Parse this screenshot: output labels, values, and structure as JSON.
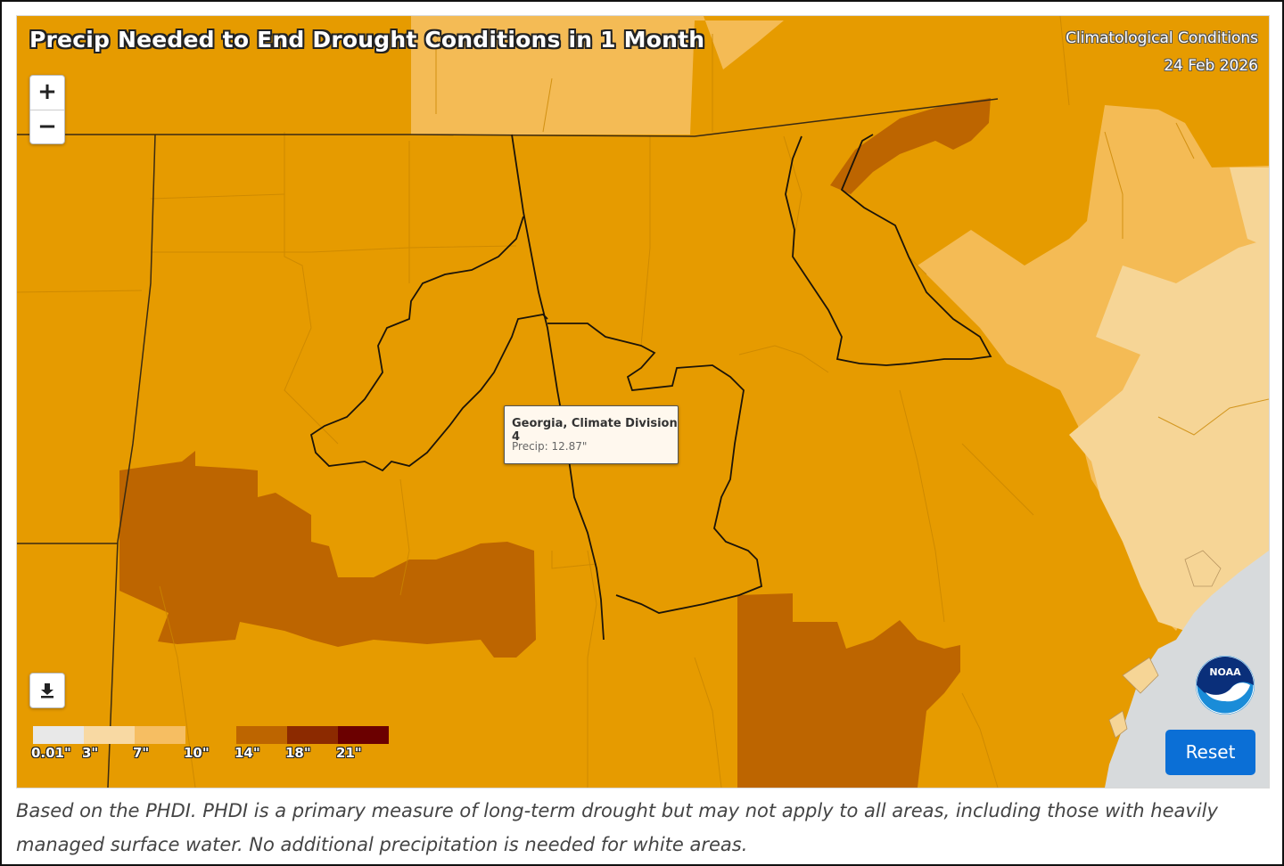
{
  "map": {
    "title": "Precip Needed to End Drought Conditions in 1 Month",
    "source_label": "Climatological Conditions",
    "date": "24 Feb 2026",
    "zoom_in_label": "+",
    "zoom_out_label": "−",
    "colors": {
      "base": "#e69b00",
      "light": "#f4bb55",
      "lighter": "#f6d596",
      "dark": "#bd6500",
      "water": "#d7dadc"
    }
  },
  "legend": {
    "items": [
      {
        "label": "0.01\"",
        "color": "#e8e8e8"
      },
      {
        "label": "3\"",
        "color": "#f8d9a3"
      },
      {
        "label": "7\"",
        "color": "#f6be62"
      },
      {
        "label": "10\"",
        "color": "#e69b00"
      },
      {
        "label": "14\"",
        "color": "#bd6500"
      },
      {
        "label": "18\"",
        "color": "#8c2a00"
      },
      {
        "label": "21\"",
        "color": "#6b0000"
      }
    ]
  },
  "tooltip": {
    "title": "Georgia, Climate Division 4",
    "value": "Precip: 12.87\""
  },
  "buttons": {
    "reset_label": "Reset",
    "download_icon": "download-icon"
  },
  "logo": {
    "text": "NOAA"
  },
  "caption": "Based on the PHDI. PHDI is a primary measure of long-term drought but may not apply to all areas, including those with heavily managed surface water. No additional precipitation is needed for white areas."
}
